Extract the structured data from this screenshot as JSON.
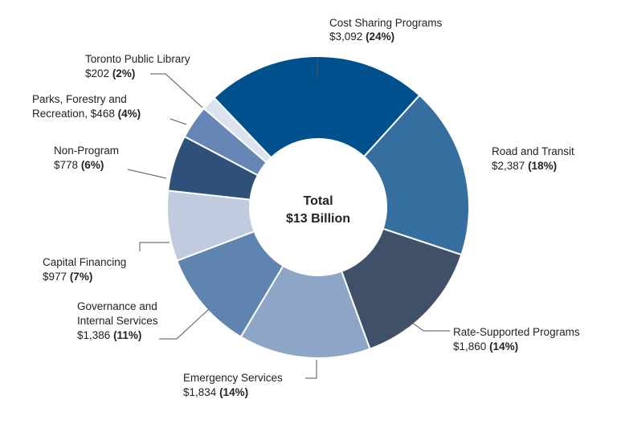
{
  "chart_data": {
    "type": "pie",
    "style": "donut",
    "unit": "$ millions",
    "center_label": {
      "line1": "Total",
      "line2": "$13 Billion"
    },
    "slices": [
      {
        "name": "Cost Sharing Programs",
        "value": 3092,
        "value_label": "$3,092",
        "percent_label": "(24%)",
        "color": "#00508E"
      },
      {
        "name": "Road and Transit",
        "value": 2387,
        "value_label": "$2,387",
        "percent_label": "(18%)",
        "color": "#366E9F"
      },
      {
        "name": "Rate-Supported Programs",
        "value": 1860,
        "value_label": "$1,860",
        "percent_label": "(14%)",
        "color": "#3F5068"
      },
      {
        "name": "Emergency Services",
        "value": 1834,
        "value_label": "$1,834",
        "percent_label": "(14%)",
        "color": "#8DA5C7"
      },
      {
        "name": "Governance and Internal Services",
        "value": 1386,
        "value_label": "$1,386",
        "percent_label": "(11%)",
        "color": "#5F84B0"
      },
      {
        "name": "Capital Financing",
        "value": 977,
        "value_label": "$977",
        "percent_label": "(7%)",
        "color": "#C0CBDF"
      },
      {
        "name": "Non-Program",
        "value": 778,
        "value_label": "$778",
        "percent_label": "(6%)",
        "color": "#2E5079"
      },
      {
        "name": "Parks, Forestry and Recreation",
        "value": 468,
        "value_label": "$468",
        "percent_label": "(4%)",
        "color": "#6687B5"
      },
      {
        "name": "Toronto Public Library",
        "value": 202,
        "value_label": "$202",
        "percent_label": "(2%)",
        "color": "#DDE3EE"
      }
    ]
  }
}
